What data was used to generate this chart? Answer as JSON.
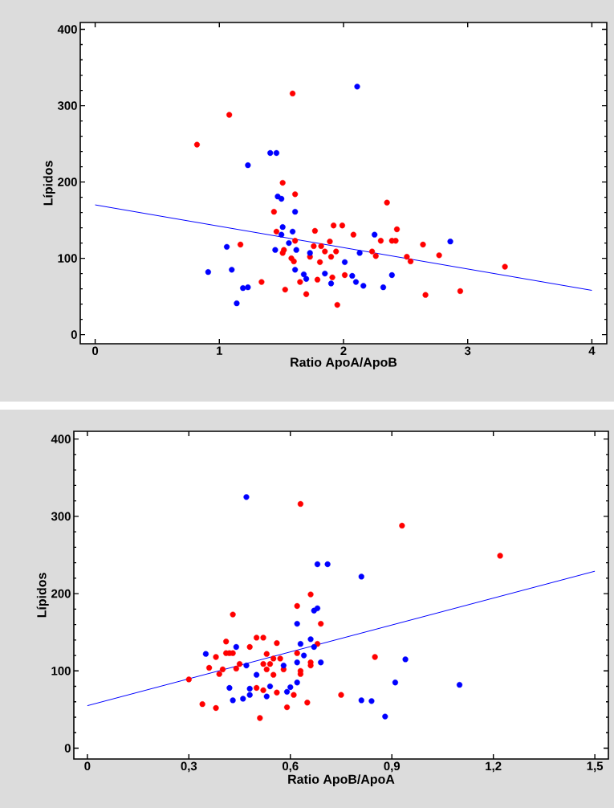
{
  "chart_data": [
    {
      "type": "scatter",
      "xlabel": "Ratio ApoA/ApoB",
      "ylabel": "Lípidos",
      "xlim": [
        -0.12,
        4.12
      ],
      "ylim": [
        -12,
        409
      ],
      "xticks": [
        0,
        1,
        2,
        3,
        4
      ],
      "yticks": [
        0,
        100,
        200,
        300,
        400
      ],
      "series": [
        {
          "marker": "circle",
          "color": "#ff0000",
          "x": [
            0.82,
            1.08,
            1.59,
            1.51,
            1.61,
            1.44,
            1.46,
            1.77,
            1.61,
            1.17,
            1.52,
            1.51,
            1.73,
            1.76,
            1.82,
            1.85,
            1.89,
            1.94,
            1.9,
            1.92,
            1.99,
            1.58,
            1.6,
            1.81,
            1.34,
            1.65,
            1.79,
            1.91,
            1.53,
            1.7,
            1.95,
            2.01,
            2.35,
            2.08,
            2.43,
            2.3,
            2.39,
            2.42,
            2.23,
            2.26,
            2.64,
            2.77,
            2.51,
            2.54,
            3.3,
            2.66,
            2.94
          ],
          "values": [
            249,
            288,
            316,
            199,
            184,
            161,
            135,
            136,
            123,
            118,
            111,
            107,
            102,
            116,
            116,
            109,
            122,
            109,
            102,
            143,
            143,
            100,
            96,
            95,
            69,
            69,
            72,
            75,
            59,
            53,
            39,
            78,
            173,
            131,
            138,
            123,
            123,
            123,
            109,
            103,
            118,
            104,
            102,
            96,
            89,
            52,
            57
          ]
        },
        {
          "marker": "circle",
          "color": "#0000ff",
          "x": [
            2.11,
            1.41,
            1.46,
            1.23,
            1.47,
            1.5,
            1.61,
            1.51,
            1.5,
            1.59,
            1.56,
            1.45,
            1.62,
            1.06,
            1.73,
            0.91,
            1.1,
            1.61,
            1.68,
            1.7,
            1.85,
            1.9,
            2.01,
            1.19,
            1.23,
            1.14,
            2.25,
            2.13,
            2.86,
            2.07,
            2.1,
            2.16,
            2.39,
            2.32
          ],
          "values": [
            325,
            238,
            238,
            222,
            181,
            178,
            161,
            141,
            131,
            135,
            120,
            111,
            111,
            115,
            107,
            82,
            85,
            85,
            79,
            73,
            80,
            67,
            95,
            61,
            62,
            41,
            131,
            107,
            122,
            77,
            69,
            64,
            78,
            62
          ]
        },
        {
          "type": "line",
          "marker": "none",
          "color": "#0000ff",
          "x": [
            0,
            4
          ],
          "values": [
            170,
            58
          ]
        }
      ]
    },
    {
      "type": "scatter",
      "xlabel": "Ratio ApoB/ApoA",
      "ylabel": "Lípidos",
      "xlim": [
        -0.04,
        1.54
      ],
      "ylim": [
        -14,
        410
      ],
      "xticks": [
        0,
        {
          "value": 0.3,
          "label": "0,3"
        },
        {
          "value": 0.6,
          "label": "0,6"
        },
        {
          "value": 0.9,
          "label": "0,9"
        },
        {
          "value": 1.2,
          "label": "1,2"
        },
        {
          "value": 1.5,
          "label": "1,5"
        }
      ],
      "yticks": [
        0,
        100,
        200,
        300,
        400
      ],
      "series": [
        {
          "marker": "circle",
          "color": "#ff0000",
          "x": [
            1.22,
            0.93,
            0.63,
            0.66,
            0.62,
            0.69,
            0.68,
            0.56,
            0.62,
            0.85,
            0.66,
            0.66,
            0.58,
            0.57,
            0.55,
            0.54,
            0.53,
            0.52,
            0.53,
            0.52,
            0.5,
            0.63,
            0.63,
            0.55,
            0.75,
            0.61,
            0.56,
            0.52,
            0.65,
            0.59,
            0.51,
            0.5,
            0.43,
            0.48,
            0.41,
            0.43,
            0.42,
            0.41,
            0.45,
            0.44,
            0.38,
            0.36,
            0.4,
            0.39,
            0.3,
            0.38,
            0.34
          ],
          "values": [
            249,
            288,
            316,
            199,
            184,
            161,
            135,
            136,
            123,
            118,
            111,
            107,
            102,
            116,
            116,
            109,
            122,
            109,
            102,
            143,
            143,
            100,
            96,
            95,
            69,
            69,
            72,
            75,
            59,
            53,
            39,
            78,
            173,
            131,
            138,
            123,
            123,
            123,
            109,
            103,
            118,
            104,
            102,
            96,
            89,
            52,
            57
          ]
        },
        {
          "marker": "circle",
          "color": "#0000ff",
          "x": [
            0.47,
            0.71,
            0.68,
            0.81,
            0.68,
            0.67,
            0.62,
            0.66,
            0.67,
            0.63,
            0.64,
            0.69,
            0.62,
            0.94,
            0.58,
            1.1,
            0.91,
            0.62,
            0.6,
            0.59,
            0.54,
            0.53,
            0.5,
            0.84,
            0.81,
            0.88,
            0.44,
            0.47,
            0.35,
            0.48,
            0.48,
            0.46,
            0.42,
            0.43
          ],
          "values": [
            325,
            238,
            238,
            222,
            181,
            178,
            161,
            141,
            131,
            135,
            120,
            111,
            111,
            115,
            107,
            82,
            85,
            85,
            79,
            73,
            80,
            67,
            95,
            61,
            62,
            41,
            131,
            107,
            122,
            77,
            69,
            64,
            78,
            62
          ]
        },
        {
          "type": "line",
          "marker": "none",
          "color": "#0000ff",
          "x": [
            0,
            1.5
          ],
          "values": [
            55,
            229
          ]
        }
      ]
    }
  ]
}
